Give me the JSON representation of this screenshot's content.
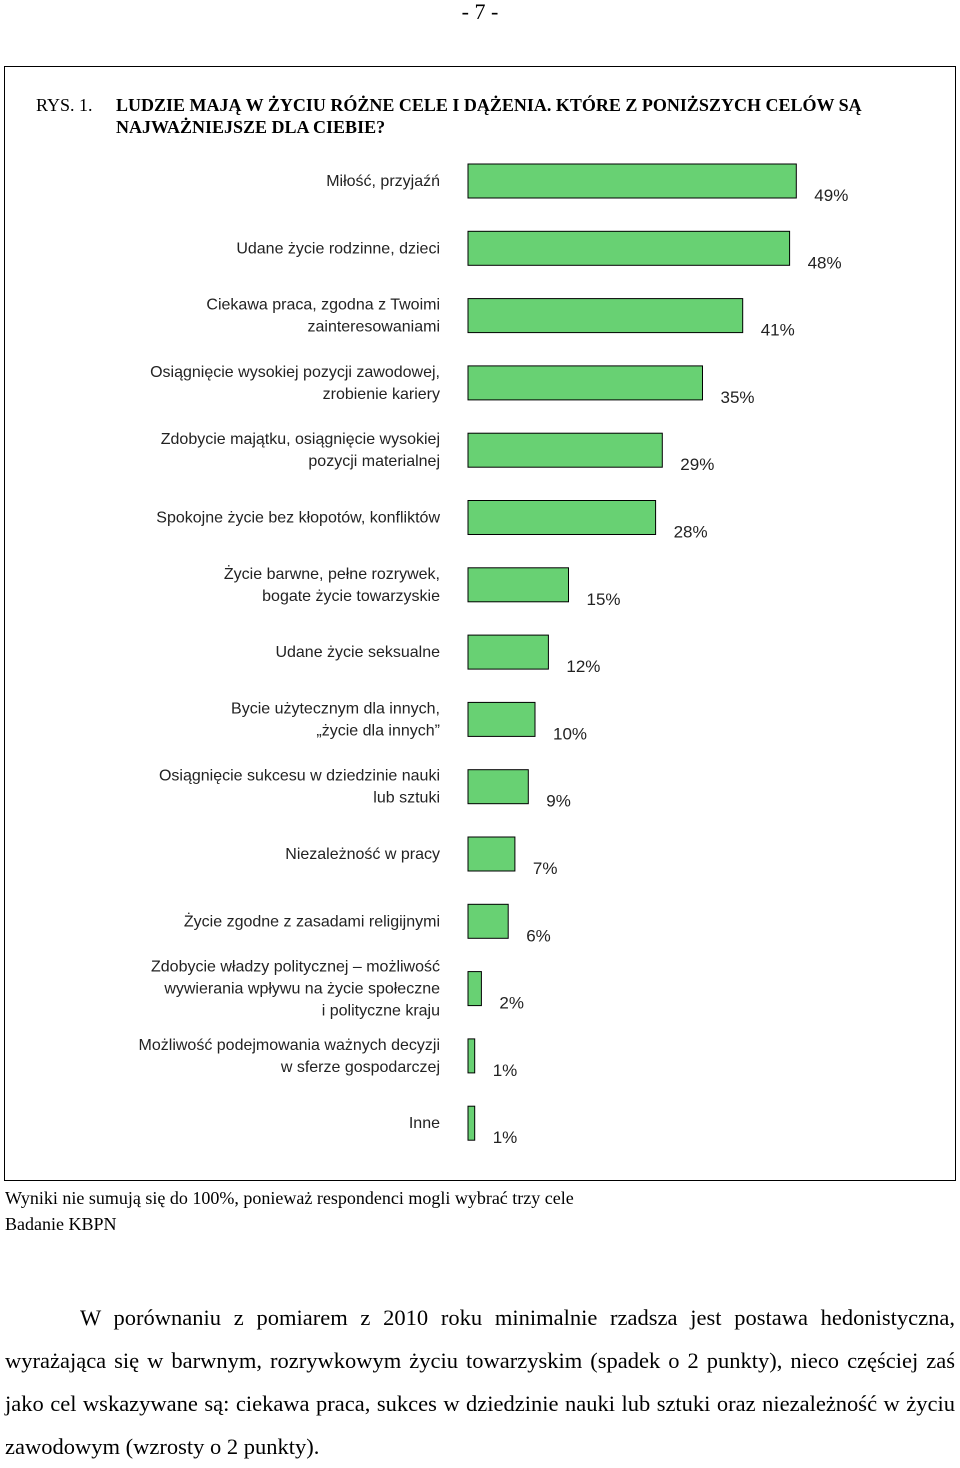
{
  "page_number": "- 7 -",
  "figure": {
    "number": "RYS. 1.",
    "title": "LUDZIE MAJĄ W ŻYCIU RÓŻNE CELE I DĄŻENIA. KTÓRE Z PONIŻSZYCH CELÓW SĄ NAJWAŻNIEJSZE DLA CIEBIE?"
  },
  "chart_data": {
    "type": "bar",
    "orientation": "horizontal",
    "categories": [
      [
        "Miłość, przyjaźń"
      ],
      [
        "Udane życie rodzinne, dzieci"
      ],
      [
        "Ciekawa praca, zgodna z Twoimi",
        "zainteresowaniami"
      ],
      [
        "Osiągnięcie wysokiej pozycji zawodowej,",
        "zrobienie kariery"
      ],
      [
        "Zdobycie majątku, osiągnięcie wysokiej",
        "pozycji materialnej"
      ],
      [
        "Spokojne życie bez kłopotów, konfliktów"
      ],
      [
        "Życie barwne, pełne rozrywek,",
        "bogate życie towarzyskie"
      ],
      [
        "Udane życie seksualne"
      ],
      [
        "Bycie użytecznym dla innych,",
        "„życie dla innych”"
      ],
      [
        "Osiągnięcie sukcesu w dziedzinie nauki",
        "lub sztuki"
      ],
      [
        "Niezależność w pracy"
      ],
      [
        "Życie zgodne z zasadami religijnymi"
      ],
      [
        "Zdobycie władzy politycznej – możliwość",
        "wywierania wpływu na życie społeczne",
        "i polityczne kraju"
      ],
      [
        "Możliwość podejmowania ważnych decyzji",
        "w sferze gospodarczej"
      ],
      [
        "Inne"
      ]
    ],
    "values": [
      49,
      48,
      41,
      35,
      29,
      28,
      15,
      12,
      10,
      9,
      7,
      6,
      2,
      1,
      1
    ],
    "value_labels": [
      "49%",
      "48%",
      "41%",
      "35%",
      "29%",
      "28%",
      "15%",
      "12%",
      "10%",
      "9%",
      "7%",
      "6%",
      "2%",
      "1%",
      "1%"
    ],
    "unit": "%",
    "xlim": [
      0,
      50
    ],
    "bar_color": "#68d173",
    "grid": false,
    "legend": "none"
  },
  "notes": {
    "line1": "Wyniki nie sumują się do 100%, ponieważ respondenci mogli wybrać trzy cele",
    "line2": "Badanie KBPN"
  },
  "paragraph": "W porównaniu z pomiarem z 2010 roku minimalnie rzadsza jest postawa hedonistyczna, wyrażająca się w barwnym, rozrywkowym życiu towarzyskim (spadek o 2 punkty), nieco częściej zaś jako cel wskazywane są: ciekawa praca, sukces w dziedzinie nauki lub sztuki oraz niezależność w życiu zawodowym (wzrosty o 2 punkty)."
}
